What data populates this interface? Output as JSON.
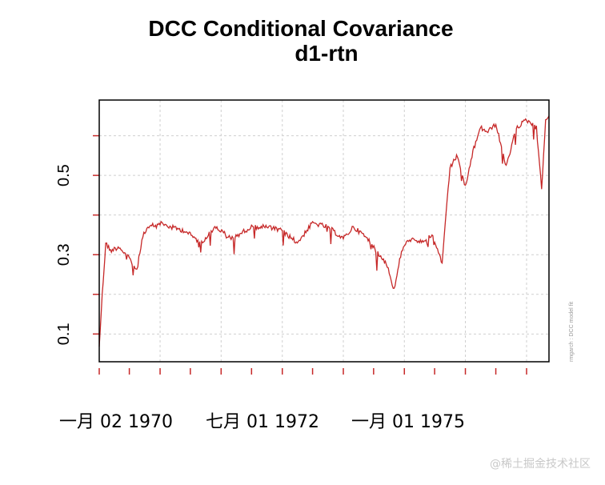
{
  "chart_data": {
    "type": "line",
    "title": "DCC Conditional Covariance",
    "subtitle": "d1-rtn",
    "xlabel": "",
    "ylabel": "",
    "x_ticks": [
      "一月 02 1970",
      "七月 01 1972",
      "一月 01 1975"
    ],
    "y_ticks": [
      "0.1",
      "0.3",
      "0.5"
    ],
    "ylim": [
      0.03,
      0.69
    ],
    "xlim": [
      "1970-01-02",
      "1977-05-15"
    ],
    "grid": true,
    "side_note": "rmgarch : DCC model fit",
    "series": [
      {
        "color": "#c62828",
        "x": [
          "1970-01-02",
          "1970-01-20",
          "1970-02-10",
          "1970-03-10",
          "1970-05-01",
          "1970-07-01",
          "1970-08-15",
          "1970-09-20",
          "1970-11-01",
          "1971-01-01",
          "1971-03-01",
          "1971-06-01",
          "1971-09-01",
          "1971-12-01",
          "1972-03-01",
          "1972-07-01",
          "1972-10-01",
          "1973-01-01",
          "1973-04-01",
          "1973-07-01",
          "1973-10-01",
          "1974-01-01",
          "1974-03-01",
          "1974-05-01",
          "1974-06-15",
          "1974-08-01",
          "1974-09-15",
          "1974-11-01",
          "1974-12-15",
          "1975-02-01",
          "1975-04-01",
          "1975-06-15",
          "1975-08-15",
          "1975-10-01",
          "1975-11-15",
          "1976-01-01",
          "1976-02-15",
          "1976-04-01",
          "1976-05-15",
          "1976-07-01",
          "1976-09-01",
          "1976-11-01",
          "1977-01-01",
          "1977-02-01",
          "1977-03-01",
          "1977-04-01",
          "1977-04-25",
          "1977-05-15"
        ],
        "y": [
          0.07,
          0.2,
          0.33,
          0.31,
          0.32,
          0.29,
          0.26,
          0.35,
          0.37,
          0.38,
          0.37,
          0.36,
          0.33,
          0.37,
          0.34,
          0.37,
          0.37,
          0.36,
          0.33,
          0.38,
          0.37,
          0.34,
          0.37,
          0.35,
          0.33,
          0.3,
          0.28,
          0.21,
          0.31,
          0.34,
          0.33,
          0.35,
          0.28,
          0.52,
          0.55,
          0.47,
          0.56,
          0.62,
          0.61,
          0.63,
          0.52,
          0.62,
          0.64,
          0.63,
          0.62,
          0.47,
          0.64,
          0.65
        ]
      }
    ]
  },
  "watermark": "@稀土掘金技术社区"
}
